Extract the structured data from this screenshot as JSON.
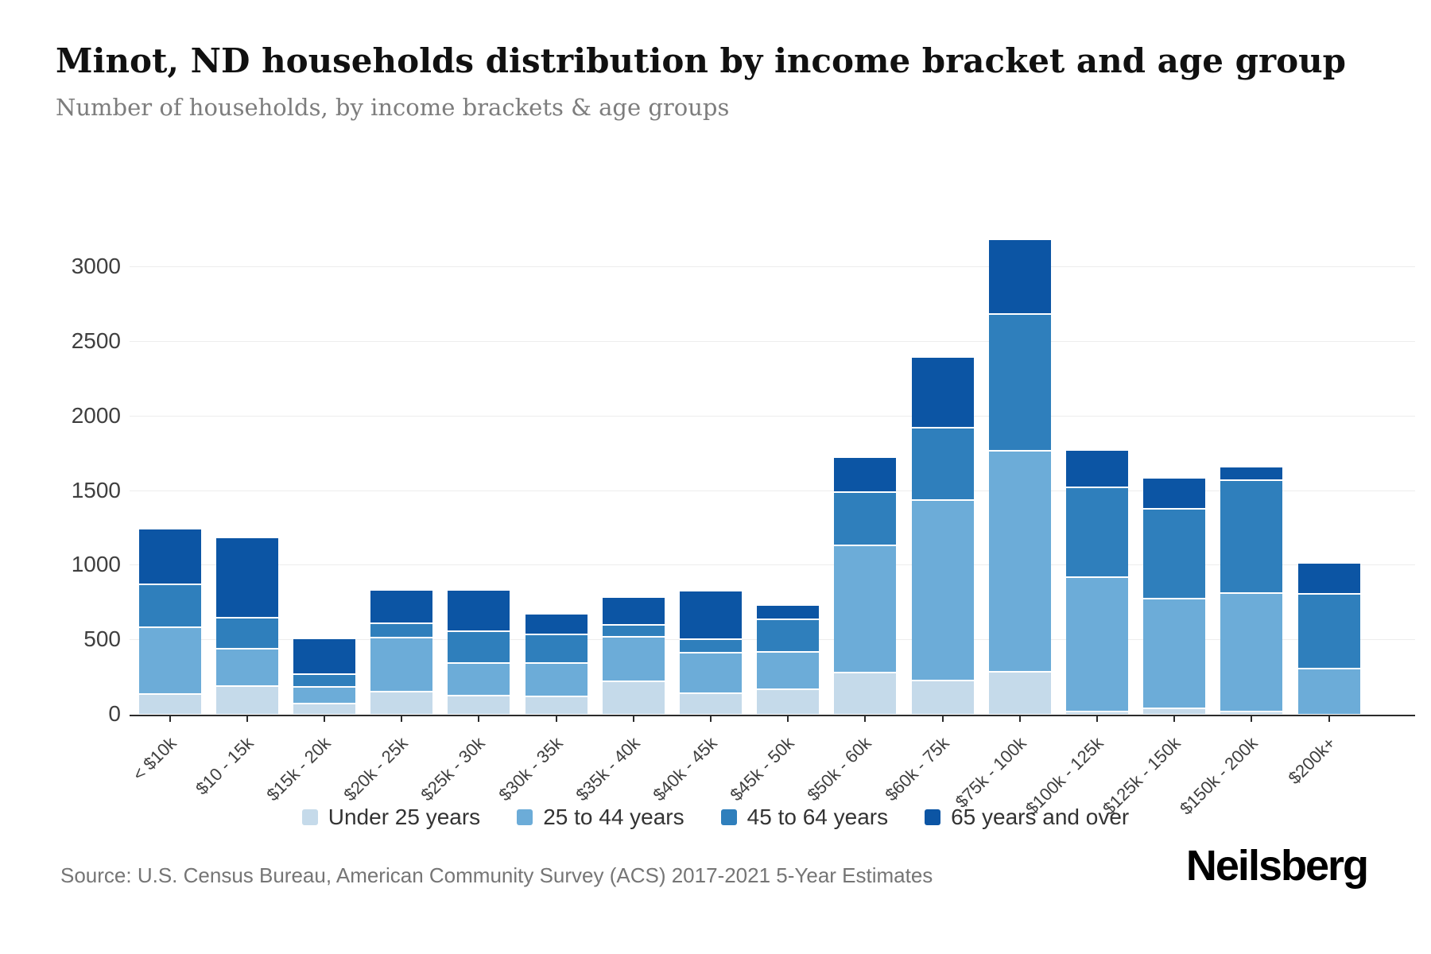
{
  "header": {
    "title": "Minot, ND households distribution by income bracket and age group",
    "subtitle": "Number of households, by income brackets & age groups"
  },
  "footer": {
    "source": "Source: U.S. Census Bureau, American Community Survey (ACS) 2017-2021 5-Year Estimates",
    "brand": "Neilsberg"
  },
  "chart_data": {
    "type": "bar",
    "stacked": true,
    "title": "Minot, ND households distribution by income bracket and age group",
    "subtitle": "Number of households, by income brackets & age groups",
    "categories": [
      "< $10k",
      "$10 - 15k",
      "$15k - 20k",
      "$20k - 25k",
      "$25k - 30k",
      "$30k - 35k",
      "$35k - 40k",
      "$40k - 45k",
      "$45k - 50k",
      "$50k - 60k",
      "$60k - 75k",
      "$75k - 100k",
      "$100k - 125k",
      "$125k - 150k",
      "$150k - 200k",
      "$200k+"
    ],
    "series": [
      {
        "name": "Under 25 years",
        "color": "#c5daea",
        "values": [
          140,
          190,
          75,
          155,
          130,
          120,
          225,
          145,
          170,
          285,
          230,
          290,
          20,
          45,
          20,
          0
        ]
      },
      {
        "name": "25 to 44 years",
        "color": "#6cacd8",
        "values": [
          445,
          250,
          110,
          360,
          215,
          225,
          300,
          270,
          250,
          850,
          1210,
          1480,
          900,
          735,
          795,
          310
        ]
      },
      {
        "name": "45 to 64 years",
        "color": "#2f7fbc",
        "values": [
          290,
          210,
          85,
          100,
          215,
          195,
          80,
          90,
          220,
          360,
          485,
          915,
          605,
          600,
          755,
          500
        ]
      },
      {
        "name": "65 years and over",
        "color": "#0c55a4",
        "values": [
          360,
          530,
          230,
          210,
          265,
          125,
          175,
          315,
          85,
          220,
          465,
          490,
          240,
          200,
          85,
          200
        ]
      }
    ],
    "xlabel": "",
    "ylabel": "",
    "ylim": [
      0,
      3300
    ],
    "y_ticks": [
      0,
      500,
      1000,
      1500,
      2000,
      2500,
      3000
    ],
    "grid": "horizontal",
    "legend_position": "bottom"
  },
  "colors": {
    "axis": "#2b2b2b",
    "gridline": "#ededed",
    "label_text": "#3f3f3f",
    "muted_text": "#757575"
  }
}
